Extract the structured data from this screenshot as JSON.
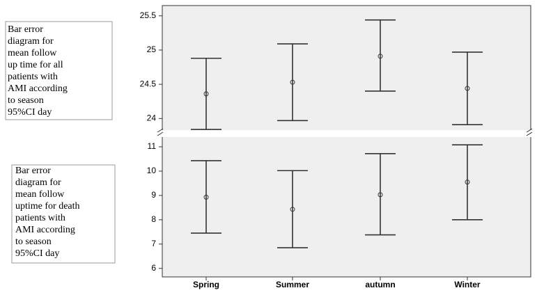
{
  "chart_data": [
    {
      "type": "errorbar",
      "annotation": [
        "Bar error",
        "diagram for",
        "mean follow",
        "up time for all",
        "patients with",
        "AMI according",
        "to season",
        "95%CI day"
      ],
      "values": [
        24.36,
        24.53,
        24.91,
        24.44
      ],
      "lower": [
        23.84,
        23.97,
        24.4,
        23.91
      ],
      "upper": [
        24.88,
        25.09,
        25.44,
        24.97
      ],
      "ylim": [
        23.8,
        25.65
      ],
      "yticks": [
        24,
        24.5,
        25,
        25.5
      ],
      "color": "#333333"
    },
    {
      "type": "errorbar",
      "annotation": [
        "Bar error",
        "diagram for",
        "mean follow",
        "uptime for death",
        "patients with",
        "AMI according",
        "to season",
        "95%CI day"
      ],
      "categories": [
        "Spring",
        "Summer",
        "autumn",
        "Winter"
      ],
      "values": [
        8.93,
        8.43,
        9.03,
        9.55
      ],
      "lower": [
        7.45,
        6.85,
        7.38,
        8.0
      ],
      "upper": [
        10.43,
        10.02,
        10.72,
        11.08
      ],
      "ylim": [
        5.65,
        11.4
      ],
      "yticks": [
        6,
        7,
        8,
        9,
        10,
        11
      ],
      "color": "#333333"
    }
  ]
}
